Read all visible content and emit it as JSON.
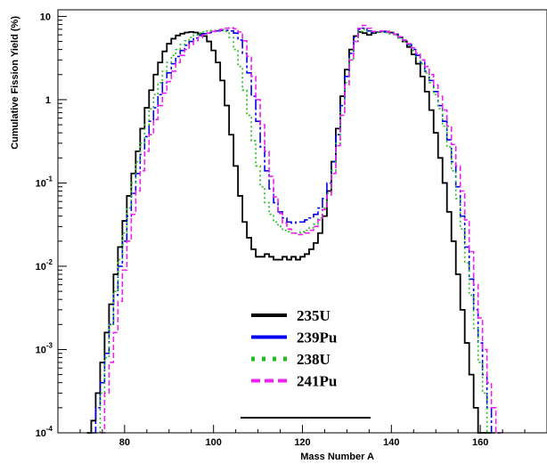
{
  "chart_data": {
    "type": "line",
    "title": "",
    "xlabel": "Mass Number A",
    "ylabel": "Cumulative Fission Yield (%)",
    "xlim": [
      65,
      175
    ],
    "ylim": [
      0.0001,
      12
    ],
    "yscale": "log",
    "grid": false,
    "legend_position": "bottom-center",
    "x_ticks": [
      80,
      100,
      120,
      140,
      160
    ],
    "y_ticks": [
      {
        "value": 0.0001,
        "mantissa": "10",
        "exp": "-4"
      },
      {
        "value": 0.001,
        "mantissa": "10",
        "exp": "-3"
      },
      {
        "value": 0.01,
        "mantissa": "10",
        "exp": "-2"
      },
      {
        "value": 0.1,
        "mantissa": "10",
        "exp": "-1"
      },
      {
        "value": 1,
        "mantissa": "1",
        "exp": ""
      },
      {
        "value": 10,
        "mantissa": "10",
        "exp": ""
      }
    ],
    "series": [
      {
        "name": "235U",
        "color": "#000000",
        "style": "solid",
        "x": [
          72,
          73,
          74,
          75,
          76,
          77,
          78,
          79,
          80,
          81,
          82,
          83,
          84,
          85,
          86,
          87,
          88,
          89,
          90,
          91,
          92,
          93,
          94,
          95,
          96,
          97,
          98,
          99,
          100,
          101,
          102,
          103,
          104,
          105,
          106,
          107,
          108,
          109,
          110,
          111,
          112,
          113,
          114,
          115,
          116,
          117,
          118,
          119,
          120,
          121,
          122,
          123,
          124,
          125,
          126,
          127,
          128,
          129,
          130,
          131,
          132,
          133,
          134,
          135,
          136,
          137,
          138,
          139,
          140,
          141,
          142,
          143,
          144,
          145,
          146,
          147,
          148,
          149,
          150,
          151,
          152,
          153,
          154,
          155,
          156,
          157,
          158,
          159,
          160,
          161,
          162
        ],
        "values": [
          0.0001,
          0.00014,
          0.0003,
          0.0007,
          0.0016,
          0.0035,
          0.008,
          0.017,
          0.035,
          0.07,
          0.13,
          0.24,
          0.45,
          0.8,
          1.3,
          2.0,
          2.8,
          3.8,
          4.7,
          5.4,
          5.9,
          6.2,
          6.4,
          6.5,
          6.4,
          6.2,
          5.8,
          5.0,
          3.9,
          2.8,
          1.7,
          0.85,
          0.38,
          0.16,
          0.07,
          0.034,
          0.022,
          0.016,
          0.013,
          0.013,
          0.014,
          0.013,
          0.012,
          0.012,
          0.013,
          0.012,
          0.013,
          0.012,
          0.013,
          0.014,
          0.016,
          0.019,
          0.025,
          0.04,
          0.08,
          0.18,
          0.45,
          1.1,
          2.3,
          4.0,
          5.8,
          6.5,
          6.3,
          6.0,
          6.3,
          6.5,
          6.6,
          6.6,
          6.4,
          6.1,
          5.6,
          5.0,
          4.3,
          3.5,
          2.7,
          1.9,
          1.25,
          0.75,
          0.4,
          0.2,
          0.1,
          0.045,
          0.02,
          0.008,
          0.003,
          0.0012,
          0.0005,
          0.0002,
          0.0001,
          0.0001,
          0.0001
        ]
      },
      {
        "name": "239Pu",
        "color": "#0000ee",
        "style": "dashdot",
        "x": [
          73,
          74,
          75,
          76,
          77,
          78,
          79,
          80,
          81,
          82,
          83,
          84,
          85,
          86,
          87,
          88,
          89,
          90,
          91,
          92,
          93,
          94,
          95,
          96,
          97,
          98,
          99,
          100,
          101,
          102,
          103,
          104,
          105,
          106,
          107,
          108,
          109,
          110,
          111,
          112,
          113,
          114,
          115,
          116,
          117,
          118,
          119,
          120,
          121,
          122,
          123,
          124,
          125,
          126,
          127,
          128,
          129,
          130,
          131,
          132,
          133,
          134,
          135,
          136,
          137,
          138,
          139,
          140,
          141,
          142,
          143,
          144,
          145,
          146,
          147,
          148,
          149,
          150,
          151,
          152,
          153,
          154,
          155,
          156,
          157,
          158,
          159,
          160,
          161,
          162,
          163,
          164
        ],
        "values": [
          0.0001,
          0.0002,
          0.0004,
          0.0009,
          0.002,
          0.0045,
          0.01,
          0.02,
          0.04,
          0.075,
          0.13,
          0.22,
          0.36,
          0.55,
          0.8,
          1.15,
          1.6,
          2.1,
          2.7,
          3.3,
          3.9,
          4.5,
          5.0,
          5.5,
          5.9,
          6.2,
          6.4,
          6.6,
          6.7,
          6.8,
          6.8,
          6.7,
          6.3,
          5.2,
          3.6,
          2.1,
          1.1,
          0.55,
          0.27,
          0.14,
          0.085,
          0.058,
          0.045,
          0.038,
          0.034,
          0.033,
          0.034,
          0.034,
          0.036,
          0.038,
          0.042,
          0.05,
          0.065,
          0.1,
          0.18,
          0.38,
          0.85,
          1.9,
          3.6,
          5.6,
          7.0,
          7.2,
          6.7,
          6.4,
          6.5,
          6.6,
          6.5,
          6.3,
          6.0,
          5.6,
          5.1,
          4.6,
          4.0,
          3.4,
          2.8,
          2.2,
          1.7,
          1.25,
          0.85,
          0.55,
          0.33,
          0.18,
          0.09,
          0.04,
          0.017,
          0.007,
          0.003,
          0.0012,
          0.0005,
          0.0002,
          0.0001,
          0.0001
        ]
      },
      {
        "name": "238U",
        "color": "#22bb22",
        "style": "dotted",
        "x": [
          74,
          75,
          76,
          77,
          78,
          79,
          80,
          81,
          82,
          83,
          84,
          85,
          86,
          87,
          88,
          89,
          90,
          91,
          92,
          93,
          94,
          95,
          96,
          97,
          98,
          99,
          100,
          101,
          102,
          103,
          104,
          105,
          106,
          107,
          108,
          109,
          110,
          111,
          112,
          113,
          114,
          115,
          116,
          117,
          118,
          119,
          120,
          121,
          122,
          123,
          124,
          125,
          126,
          127,
          128,
          129,
          130,
          131,
          132,
          133,
          134,
          135,
          136,
          137,
          138,
          139,
          140,
          141,
          142,
          143,
          144,
          145,
          146,
          147,
          148,
          149,
          150,
          151,
          152,
          153,
          154,
          155,
          156,
          157,
          158,
          159,
          160,
          161,
          162,
          163,
          164
        ],
        "values": [
          0.0001,
          0.0003,
          0.0008,
          0.002,
          0.005,
          0.012,
          0.025,
          0.05,
          0.1,
          0.18,
          0.3,
          0.5,
          0.78,
          1.15,
          1.6,
          2.2,
          2.8,
          3.4,
          4.0,
          4.6,
          5.1,
          5.6,
          6.0,
          6.3,
          6.5,
          6.7,
          6.8,
          6.9,
          6.9,
          6.6,
          5.6,
          4.0,
          2.5,
          1.3,
          0.65,
          0.32,
          0.16,
          0.09,
          0.058,
          0.042,
          0.034,
          0.03,
          0.027,
          0.026,
          0.025,
          0.025,
          0.026,
          0.027,
          0.029,
          0.032,
          0.038,
          0.05,
          0.075,
          0.14,
          0.3,
          0.7,
          1.6,
          3.1,
          5.0,
          6.6,
          7.0,
          6.6,
          6.4,
          6.5,
          6.5,
          6.4,
          6.2,
          5.9,
          5.5,
          5.0,
          4.5,
          3.9,
          3.3,
          2.7,
          2.1,
          1.6,
          1.15,
          0.78,
          0.48,
          0.27,
          0.14,
          0.065,
          0.028,
          0.011,
          0.0045,
          0.0018,
          0.0007,
          0.0003,
          0.0001,
          0.0001,
          0.0001
        ]
      },
      {
        "name": "241Pu",
        "color": "#ee22ee",
        "style": "dashed",
        "x": [
          75,
          76,
          77,
          78,
          79,
          80,
          81,
          82,
          83,
          84,
          85,
          86,
          87,
          88,
          89,
          90,
          91,
          92,
          93,
          94,
          95,
          96,
          97,
          98,
          99,
          100,
          101,
          102,
          103,
          104,
          105,
          106,
          107,
          108,
          109,
          110,
          111,
          112,
          113,
          114,
          115,
          116,
          117,
          118,
          119,
          120,
          121,
          122,
          123,
          124,
          125,
          126,
          127,
          128,
          129,
          130,
          131,
          132,
          133,
          134,
          135,
          136,
          137,
          138,
          139,
          140,
          141,
          142,
          143,
          144,
          145,
          146,
          147,
          148,
          149,
          150,
          151,
          152,
          153,
          154,
          155,
          156,
          157,
          158,
          159,
          160,
          161,
          162,
          163,
          164,
          165
        ],
        "values": [
          0.0001,
          0.0003,
          0.0007,
          0.0016,
          0.0038,
          0.009,
          0.02,
          0.042,
          0.08,
          0.14,
          0.24,
          0.38,
          0.58,
          0.85,
          1.2,
          1.65,
          2.2,
          2.8,
          3.4,
          4.0,
          4.6,
          5.1,
          5.6,
          6.0,
          6.3,
          6.6,
          6.8,
          7.0,
          7.2,
          7.3,
          7.1,
          6.5,
          5.1,
          3.3,
          1.9,
          1.0,
          0.5,
          0.24,
          0.12,
          0.068,
          0.043,
          0.033,
          0.028,
          0.025,
          0.024,
          0.024,
          0.025,
          0.027,
          0.03,
          0.036,
          0.048,
          0.072,
          0.13,
          0.28,
          0.65,
          1.5,
          3.0,
          5.0,
          7.2,
          7.8,
          7.2,
          6.6,
          6.6,
          6.7,
          6.6,
          6.4,
          6.1,
          5.7,
          5.2,
          4.7,
          4.2,
          3.6,
          3.0,
          2.5,
          2.0,
          1.5,
          1.1,
          0.75,
          0.48,
          0.29,
          0.16,
          0.08,
          0.036,
          0.015,
          0.006,
          0.0024,
          0.001,
          0.0004,
          0.0002,
          0.0001,
          0.0001
        ]
      }
    ]
  }
}
